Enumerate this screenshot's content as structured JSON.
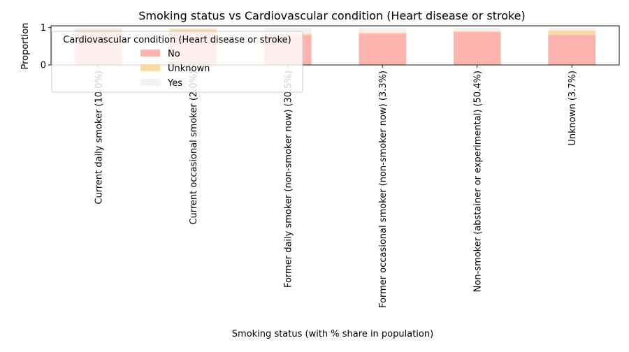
{
  "chart_data": {
    "type": "bar",
    "stacked": true,
    "title": "Smoking status vs Cardiovascular condition (Heart disease or stroke)",
    "xlabel": "Smoking status (with % share in population)",
    "ylabel": "Proportion",
    "ylim": [
      0,
      1.05
    ],
    "yticks": [
      0,
      1
    ],
    "grid": false,
    "categories": [
      "Current daily smoker (10.0%)",
      "Current occasional smoker (2.0%)",
      "Former daily smoker (non-smoker now) (30.5%)",
      "Former occasional smoker (non-smoker now) (3.3%)",
      "Non-smoker (abstainer or experimental) (50.4%)",
      "Unknown (3.7%)"
    ],
    "series": [
      {
        "name": "No",
        "color": "#fbb4ae",
        "values": [
          0.9,
          0.89,
          0.8,
          0.84,
          0.88,
          0.81
        ]
      },
      {
        "name": "Unknown",
        "color": "#fed9a6",
        "values": [
          0.04,
          0.07,
          0.04,
          0.03,
          0.02,
          0.11
        ]
      },
      {
        "name": "Yes",
        "color": "#f2f2f2",
        "values": [
          0.06,
          0.04,
          0.16,
          0.13,
          0.1,
          0.08
        ]
      }
    ],
    "legend": {
      "title": "Cardiovascular condition (Heart disease or stroke)",
      "placement": "upper-left"
    }
  }
}
